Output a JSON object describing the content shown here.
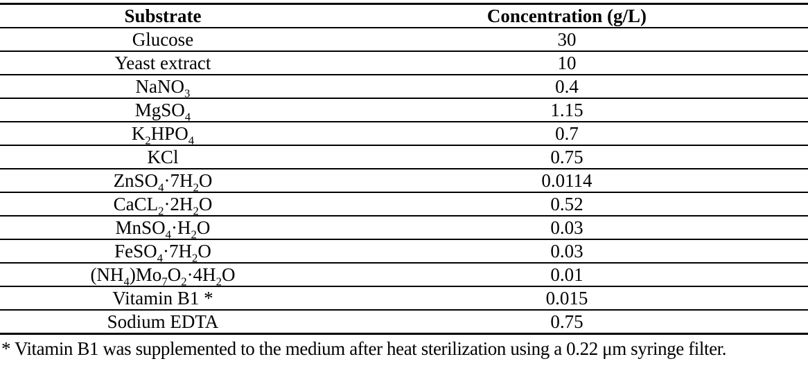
{
  "table": {
    "columns": [
      {
        "label": "Substrate"
      },
      {
        "label": "Concentration (g/L)"
      }
    ],
    "rows": [
      {
        "substrate": "Glucose",
        "concentration": "30"
      },
      {
        "substrate": "Yeast extract",
        "concentration": "10"
      },
      {
        "substrate": "NaNO~3~",
        "concentration": "0.4"
      },
      {
        "substrate": "MgSO~4~",
        "concentration": "1.15"
      },
      {
        "substrate": "K~2~HPO~4~",
        "concentration": "0.7"
      },
      {
        "substrate": "KCl",
        "concentration": "0.75"
      },
      {
        "substrate": "ZnSO~4~·7H~2~O",
        "concentration": "0.0114"
      },
      {
        "substrate": "CaCL~2~·2H~2~O",
        "concentration": "0.52"
      },
      {
        "substrate": "MnSO~4~·H~2~O",
        "concentration": "0.03"
      },
      {
        "substrate": "FeSO~4~·7H~2~O",
        "concentration": "0.03"
      },
      {
        "substrate": "(NH~4~)Mo~7~O~2~·4H~2~O",
        "concentration": "0.01"
      },
      {
        "substrate": "Vitamin B1 *",
        "concentration": "0.015"
      },
      {
        "substrate": "Sodium EDTA",
        "concentration": "0.75"
      }
    ]
  },
  "footnote": "* Vitamin B1 was supplemented to the medium after heat sterilization using a 0.22 μm syringe filter."
}
